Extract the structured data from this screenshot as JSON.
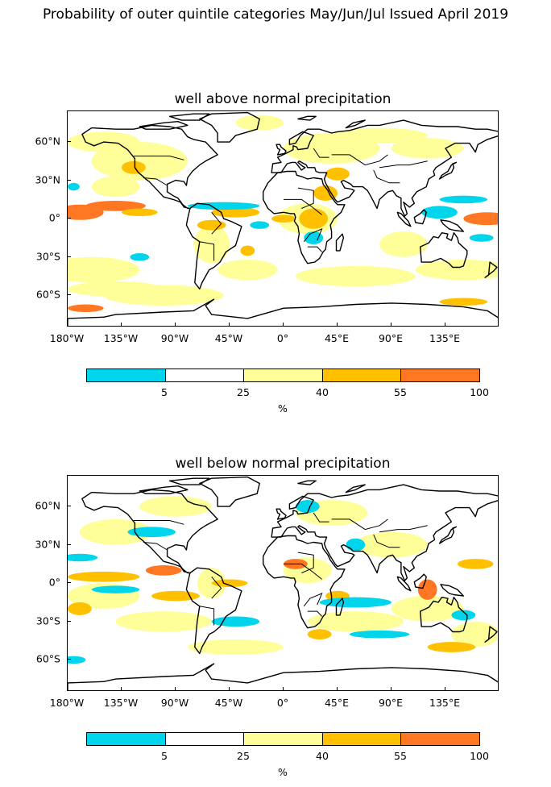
{
  "title": "Probability of outer quintile categories May/Jun/Jul Issued April 2019",
  "colors": {
    "cyan": "#00d5ec",
    "white": "#ffffff",
    "light_yellow": "#ffff99",
    "gold": "#ffc000",
    "orange": "#ff7722",
    "coast": "#000000"
  },
  "axes": {
    "lat_labels": [
      "60°N",
      "30°N",
      "0°",
      "30°S",
      "60°S"
    ],
    "lon_labels": [
      "180°W",
      "135°W",
      "90°W",
      "45°W",
      "0°",
      "45°E",
      "90°E",
      "135°E"
    ],
    "lon_range": [
      -180,
      180
    ],
    "lat_range": [
      -90,
      90
    ]
  },
  "colorbar": {
    "boundaries_shown": [
      "5",
      "25",
      "40",
      "55",
      "100"
    ],
    "unit": "%",
    "segment_colors": [
      "#00d5ec",
      "#ffffff",
      "#ffff99",
      "#ffc000",
      "#ff7722"
    ]
  },
  "panels": [
    {
      "id": "above",
      "title": "well above normal precipitation"
    },
    {
      "id": "below",
      "title": "well below normal precipitation"
    }
  ]
}
